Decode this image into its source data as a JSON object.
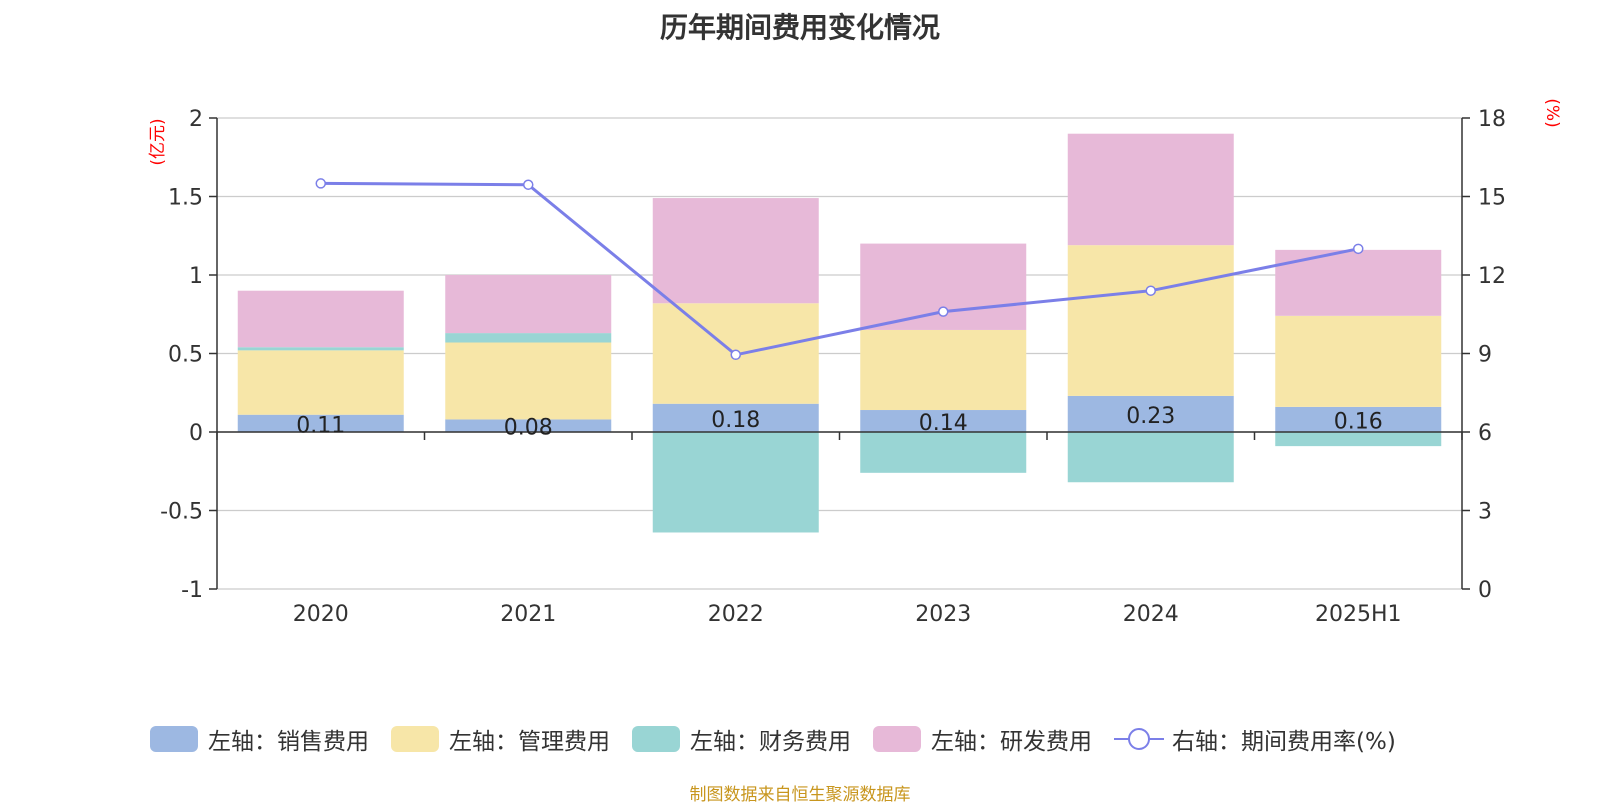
{
  "title": "历年期间费用变化情况",
  "source": "制图数据来自恒生聚源数据库",
  "chart_data": {
    "type": "bar",
    "stacked": true,
    "categories": [
      "2020",
      "2021",
      "2022",
      "2023",
      "2024",
      "2025H1"
    ],
    "left_axis": {
      "unit_label": "(亿元)",
      "ylim": [
        -1,
        2
      ],
      "ticks": [
        "-1",
        "-0.5",
        "0",
        "0.5",
        "1",
        "1.5",
        "2"
      ]
    },
    "right_axis": {
      "unit_label": "(%)",
      "ylim": [
        0,
        18
      ],
      "ticks": [
        "0",
        "3",
        "6",
        "9",
        "12",
        "15",
        "18"
      ]
    },
    "series": [
      {
        "name": "左轴：销售费用",
        "type": "bar",
        "axis": "left",
        "color": "#9db8e2",
        "values": [
          0.11,
          0.08,
          0.18,
          0.14,
          0.23,
          0.16
        ],
        "labels": [
          "0.11",
          "0.08",
          "0.18",
          "0.14",
          "0.23",
          "0.16"
        ]
      },
      {
        "name": "左轴：管理费用",
        "type": "bar",
        "axis": "left",
        "color": "#f7e6a8",
        "values": [
          0.41,
          0.49,
          0.64,
          0.51,
          0.96,
          0.58
        ]
      },
      {
        "name": "左轴：财务费用",
        "type": "bar",
        "axis": "left",
        "color": "#99d5d4",
        "values": [
          0.02,
          0.06,
          -0.64,
          -0.26,
          -0.32,
          -0.09
        ]
      },
      {
        "name": "左轴：研发费用",
        "type": "bar",
        "axis": "left",
        "color": "#e7b9d8",
        "values": [
          0.36,
          0.37,
          0.67,
          0.55,
          0.71,
          0.42
        ]
      },
      {
        "name": "右轴：期间费用率(%)",
        "type": "line",
        "axis": "right",
        "color": "#7b7fe8",
        "values": [
          15.5,
          15.45,
          8.95,
          10.6,
          11.4,
          13.0
        ]
      }
    ],
    "grid": true,
    "legend_position": "bottom"
  }
}
